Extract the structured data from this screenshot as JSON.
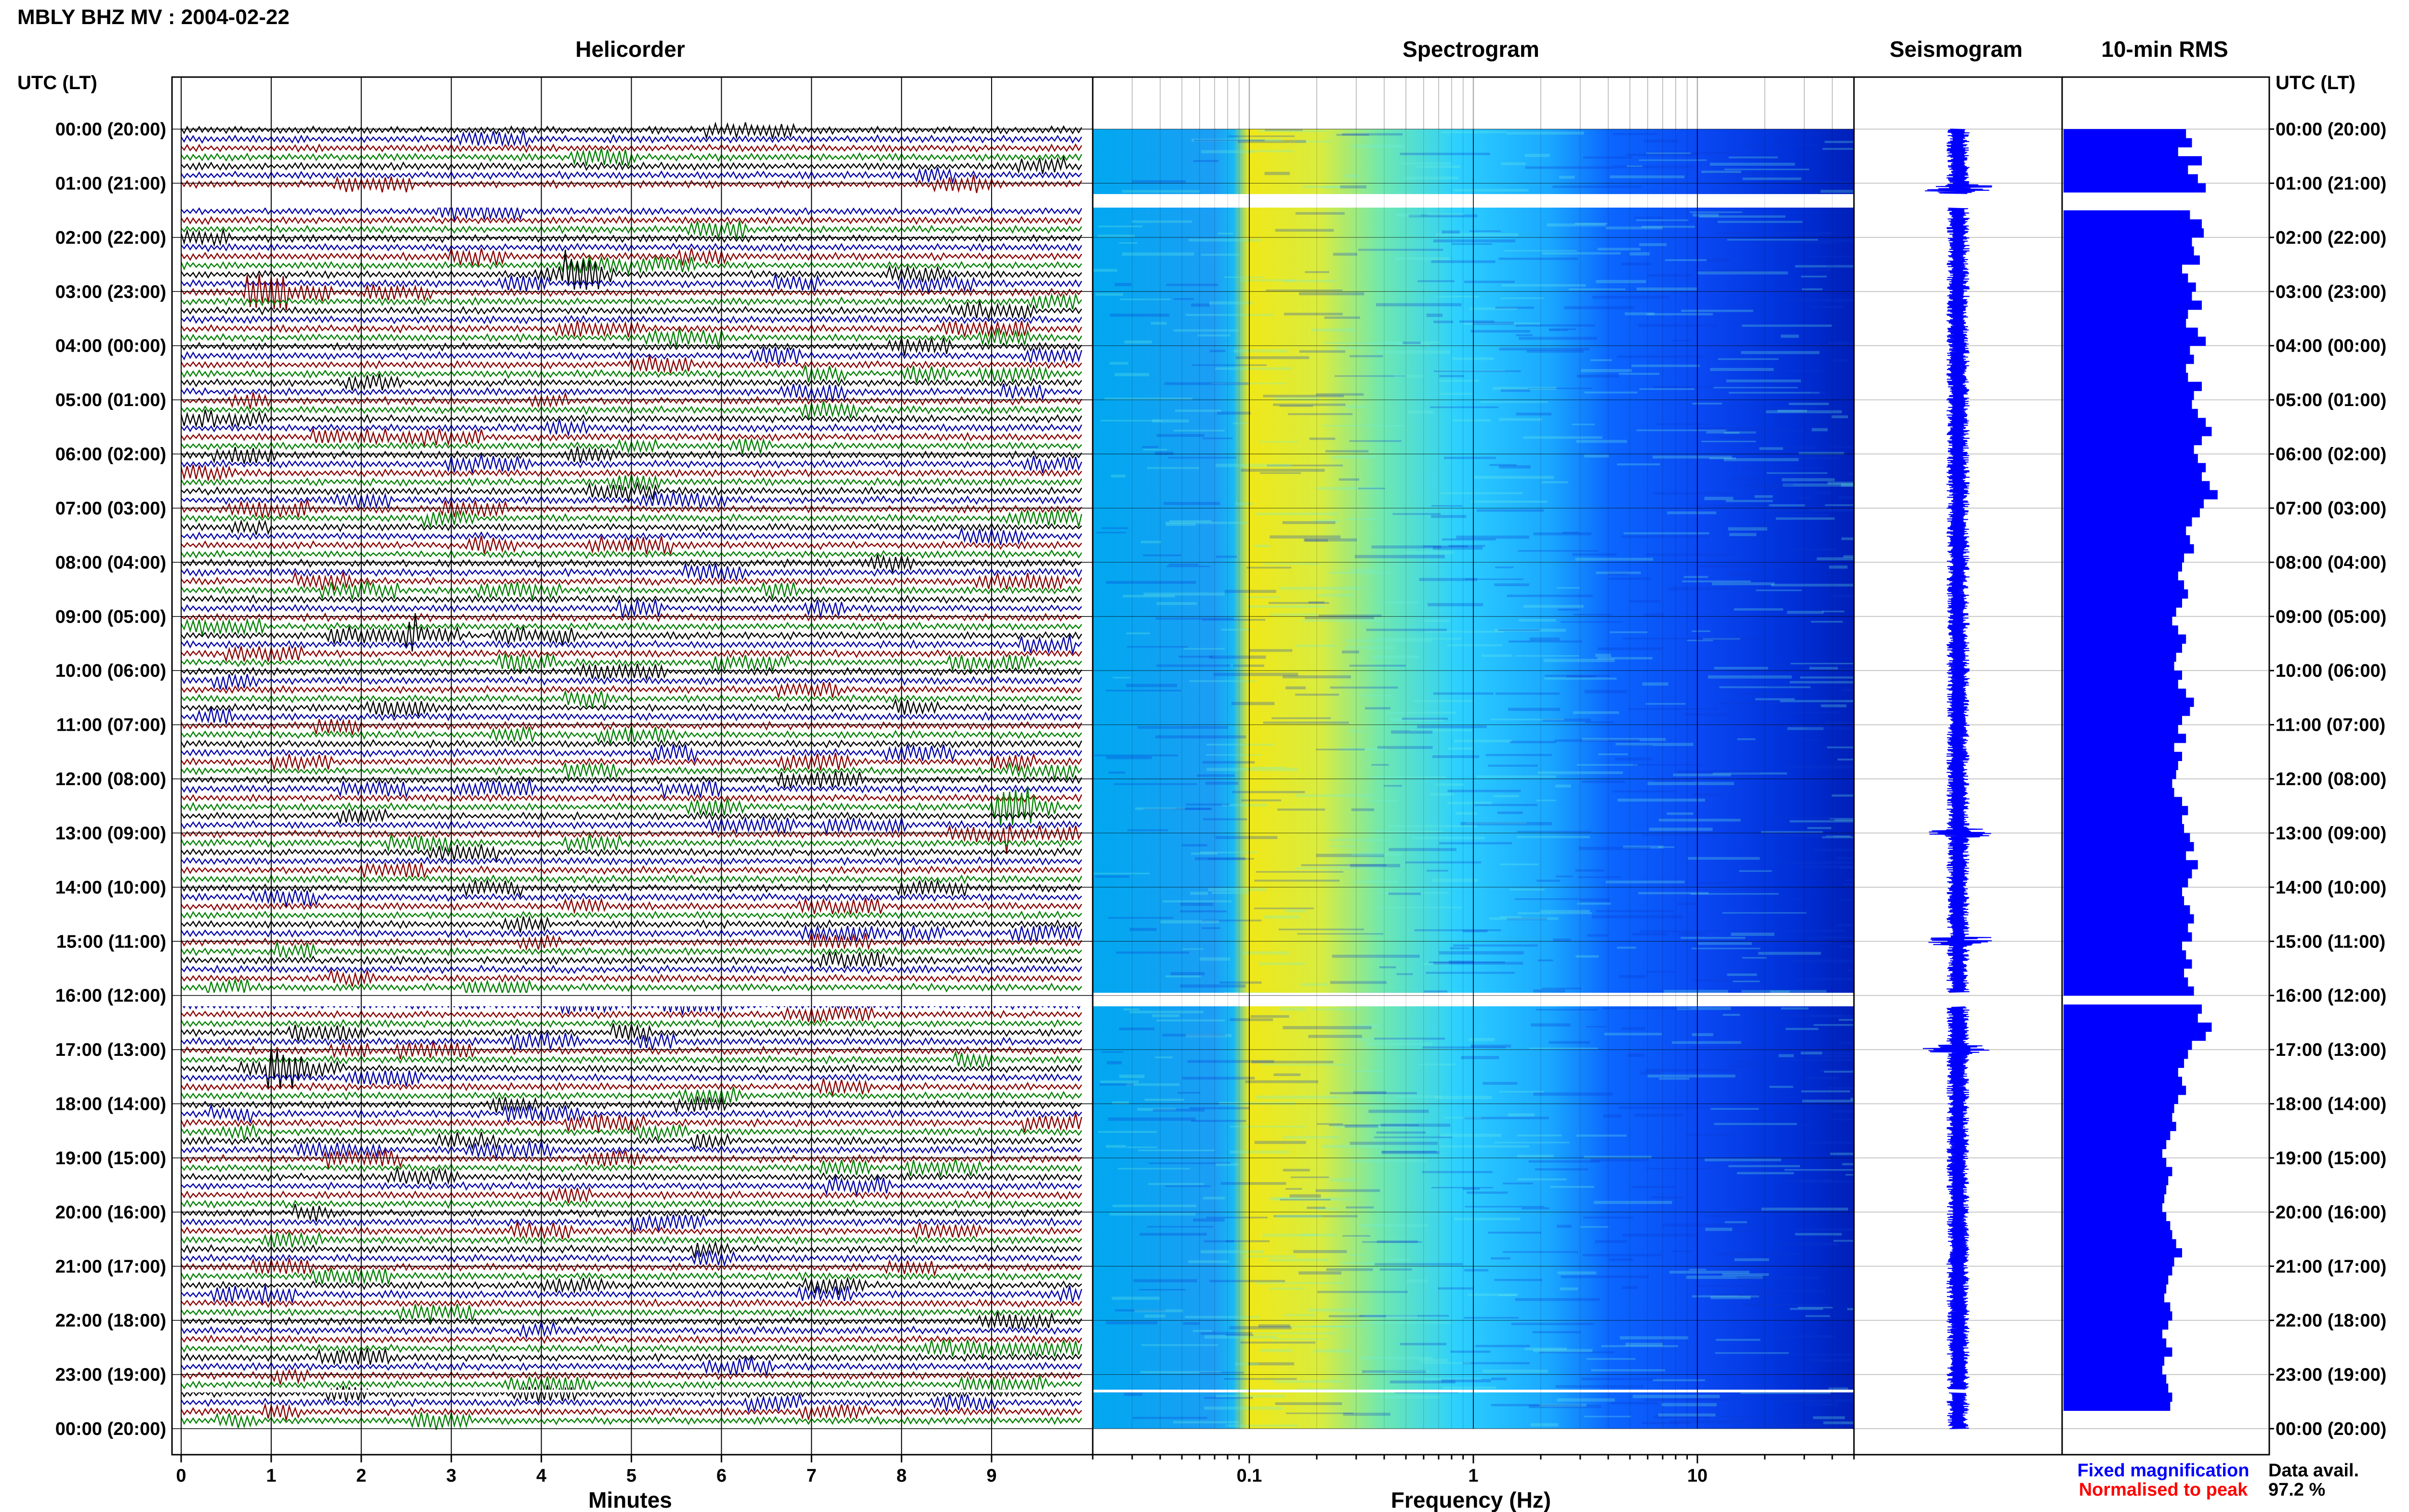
{
  "header": {
    "station_title": "MBLY BHZ MV : 2004-02-22"
  },
  "panels": {
    "helicorder": "Helicorder",
    "spectrogram": "Spectrogram",
    "seismogram": "Seismogram",
    "rms": "10-min RMS"
  },
  "time_axis": {
    "label_left": "UTC (LT)",
    "label_right": "UTC (LT)",
    "ticks": [
      "00:00 (20:00)",
      "01:00 (21:00)",
      "02:00 (22:00)",
      "03:00 (23:00)",
      "04:00 (00:00)",
      "05:00 (01:00)",
      "06:00 (02:00)",
      "07:00 (03:00)",
      "08:00 (04:00)",
      "09:00 (05:00)",
      "10:00 (06:00)",
      "11:00 (07:00)",
      "12:00 (08:00)",
      "13:00 (09:00)",
      "14:00 (10:00)",
      "15:00 (11:00)",
      "16:00 (12:00)",
      "17:00 (13:00)",
      "18:00 (14:00)",
      "19:00 (15:00)",
      "20:00 (16:00)",
      "21:00 (17:00)",
      "22:00 (18:00)",
      "23:00 (19:00)",
      "00:00 (20:00)"
    ]
  },
  "legend": {
    "fixed": "Fixed magnification",
    "fixed_color": "#0000ff",
    "normalised": "Normalised to peak",
    "normalised_color": "#ff0000",
    "data_avail_label": "Data avail.",
    "data_avail_value": "97.2 %"
  },
  "colors": {
    "trace_cycle": [
      "#000000",
      "#0000aa",
      "#8b0000",
      "#008000"
    ],
    "rms_fill": "#0000ff",
    "seismogram": "#0000ff",
    "spectrogram_scale": [
      "#0000c8",
      "#0050ff",
      "#00c8ff",
      "#80ffb0",
      "#ffff00"
    ]
  },
  "chart_data": [
    {
      "type": "line",
      "panel": "Helicorder",
      "xlabel": "Minutes",
      "xlim": [
        0,
        10
      ],
      "xticks": [
        "0",
        "1",
        "2",
        "3",
        "4",
        "5",
        "6",
        "7",
        "8",
        "9"
      ],
      "ylim_hours": [
        0,
        24
      ],
      "rows_per_hour": 6,
      "row_minutes": 10,
      "data_gaps_hours": [
        [
          1.2,
          1.45
        ],
        [
          15.95,
          16.2
        ],
        [
          23.28,
          23.33
        ]
      ]
    },
    {
      "type": "heatmap",
      "panel": "Spectrogram",
      "xlabel": "Frequency (Hz)",
      "xscale": "log",
      "xlim": [
        0.02,
        50
      ],
      "xticks": [
        "0.1",
        "1",
        "10"
      ],
      "ylim_hours": [
        0,
        24
      ],
      "frequency_profile": [
        {
          "hz": 0.02,
          "level": 0.42
        },
        {
          "hz": 0.05,
          "level": 0.45
        },
        {
          "hz": 0.11,
          "level": 0.5
        },
        {
          "hz": 0.13,
          "level": 0.88
        },
        {
          "hz": 0.3,
          "level": 0.84
        },
        {
          "hz": 0.6,
          "level": 0.72
        },
        {
          "hz": 1.2,
          "level": 0.55
        },
        {
          "hz": 2.5,
          "level": 0.45
        },
        {
          "hz": 5,
          "level": 0.32
        },
        {
          "hz": 10,
          "level": 0.2
        },
        {
          "hz": 20,
          "level": 0.1
        },
        {
          "hz": 50,
          "level": 0.02
        }
      ]
    },
    {
      "type": "line",
      "panel": "Seismogram",
      "ylim_hours": [
        0,
        24
      ],
      "events_hours": [
        1.1,
        13.0,
        15.0,
        17.0
      ]
    },
    {
      "type": "bar",
      "panel": "10-min RMS",
      "orientation": "horizontal",
      "ylim_hours": [
        0,
        24
      ],
      "values_relative": [
        0.62,
        0.65,
        0.58,
        0.7,
        0.63,
        0.68,
        0.72,
        0.66,
        0.6,
        0.64,
        0.7,
        0.71,
        0.65,
        0.66,
        0.69,
        0.6,
        0.63,
        0.67,
        0.65,
        0.7,
        0.63,
        0.62,
        0.68,
        0.72,
        0.64,
        0.66,
        0.62,
        0.63,
        0.7,
        0.66,
        0.65,
        0.68,
        0.72,
        0.75,
        0.7,
        0.66,
        0.68,
        0.72,
        0.7,
        0.74,
        0.78,
        0.71,
        0.69,
        0.65,
        0.62,
        0.64,
        0.66,
        0.61,
        0.6,
        0.58,
        0.61,
        0.63,
        0.6,
        0.57,
        0.55,
        0.58,
        0.62,
        0.6,
        0.57,
        0.56,
        0.6,
        0.58,
        0.62,
        0.66,
        0.64,
        0.6,
        0.58,
        0.62,
        0.56,
        0.6,
        0.58,
        0.57,
        0.55,
        0.56,
        0.6,
        0.63,
        0.6,
        0.61,
        0.64,
        0.66,
        0.62,
        0.68,
        0.65,
        0.63,
        0.6,
        0.61,
        0.64,
        0.66,
        0.63,
        0.65,
        0.6,
        0.62,
        0.65,
        0.61,
        0.63,
        0.66,
        0.62,
        0.7,
        0.68,
        0.75,
        0.72,
        0.65,
        0.63,
        0.61,
        0.58,
        0.6,
        0.62,
        0.58,
        0.56,
        0.55,
        0.57,
        0.54,
        0.52,
        0.5,
        0.52,
        0.55,
        0.53,
        0.52,
        0.51,
        0.5,
        0.52,
        0.54,
        0.55,
        0.57,
        0.6,
        0.56,
        0.55,
        0.53,
        0.52,
        0.51,
        0.54,
        0.55,
        0.53,
        0.5,
        0.52,
        0.55,
        0.51,
        0.5,
        0.52,
        0.53,
        0.55,
        0.54
      ]
    }
  ]
}
